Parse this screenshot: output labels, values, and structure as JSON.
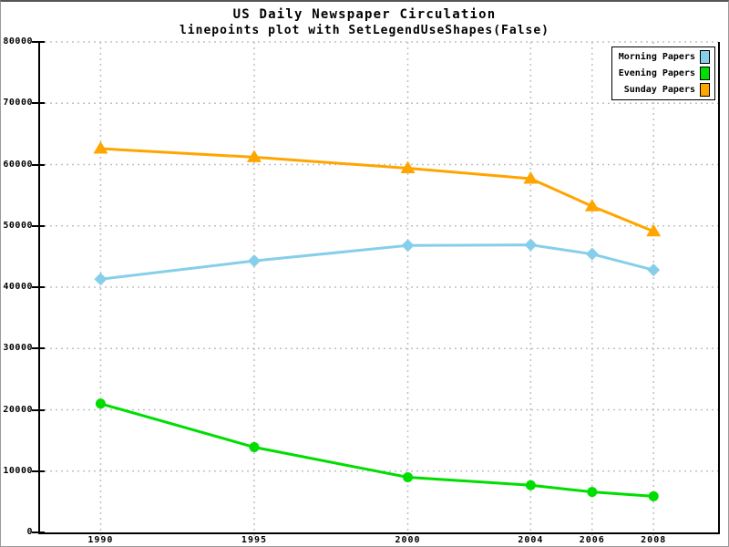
{
  "title": "US Daily Newspaper Circulation",
  "subtitle": "linepoints plot with SetLegendUseShapes(False)",
  "chart_data": {
    "type": "line",
    "title": "US Daily Newspaper Circulation",
    "subtitle": "linepoints plot with SetLegendUseShapes(False)",
    "x": [
      1990,
      1995,
      2000,
      2004,
      2006,
      2008
    ],
    "xtick_labels": [
      "1990",
      "1995",
      "2000",
      "2004",
      "2006",
      "2008"
    ],
    "series": [
      {
        "name": "Morning Papers",
        "color": "#87CEEB",
        "marker": "diamond",
        "values": [
          41300,
          44300,
          46800,
          46900,
          45400,
          42800
        ]
      },
      {
        "name": "Evening Papers",
        "color": "#00DD00",
        "marker": "circle",
        "values": [
          21000,
          13900,
          9000,
          7700,
          6600,
          5900
        ]
      },
      {
        "name": "Sunday Papers",
        "color": "#FFA500",
        "marker": "triangle",
        "values": [
          62600,
          61200,
          59400,
          57700,
          53200,
          49100
        ]
      }
    ],
    "xlabel": "",
    "ylabel": "",
    "xlim": [
      1988,
      2010.1
    ],
    "ylim": [
      0,
      80000
    ],
    "ytick_step": 10000,
    "ytick_labels": [
      "0",
      "10000",
      "20000",
      "30000",
      "40000",
      "50000",
      "60000",
      "70000",
      "80000"
    ],
    "grid": true,
    "grid_color": "#c0c0c0",
    "axis_color": "#000000",
    "background": "#ffffff",
    "legend_position": "top-right"
  }
}
